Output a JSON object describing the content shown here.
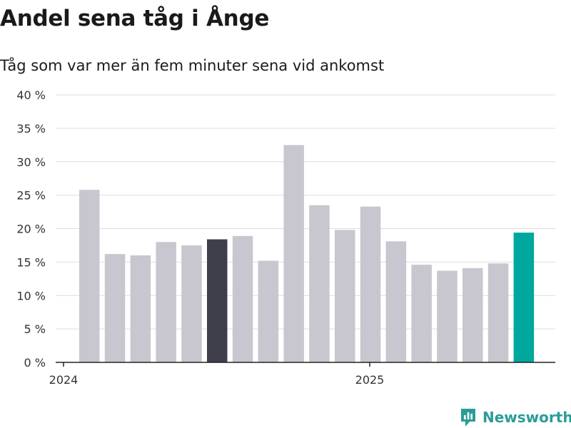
{
  "title": "Andel sena tåg i Ånge",
  "subtitle": "Tåg som var mer än fem minuter sena vid ankomst",
  "brand": {
    "name": "Newsworthy",
    "icon": "newsworthy-logo-icon"
  },
  "colors": {
    "bar_default": "#c8c7cf",
    "bar_highlight_dark": "#3f3e4b",
    "bar_latest": "#00a79d",
    "grid": "#dddddd",
    "axis": "#222222",
    "brand": "#2a9d96"
  },
  "chart_data": {
    "type": "bar",
    "ylim": [
      0,
      40
    ],
    "yticks": [
      0,
      5,
      10,
      15,
      20,
      25,
      30,
      35,
      40
    ],
    "ytick_labels": [
      "0 %",
      "5 %",
      "10 %",
      "15 %",
      "20 %",
      "25 %",
      "30 %",
      "35 %",
      "40 %"
    ],
    "xtick_labels": [
      "2024",
      "2025"
    ],
    "grid": true,
    "legend": "none",
    "values": [
      25.8,
      16.2,
      16.0,
      18.0,
      17.5,
      18.4,
      18.9,
      15.2,
      32.5,
      23.5,
      19.8,
      23.3,
      18.1,
      14.6,
      13.7,
      14.1,
      14.8,
      19.4
    ],
    "highlight": {
      "5": "bar_highlight_dark",
      "17": "bar_latest"
    }
  }
}
